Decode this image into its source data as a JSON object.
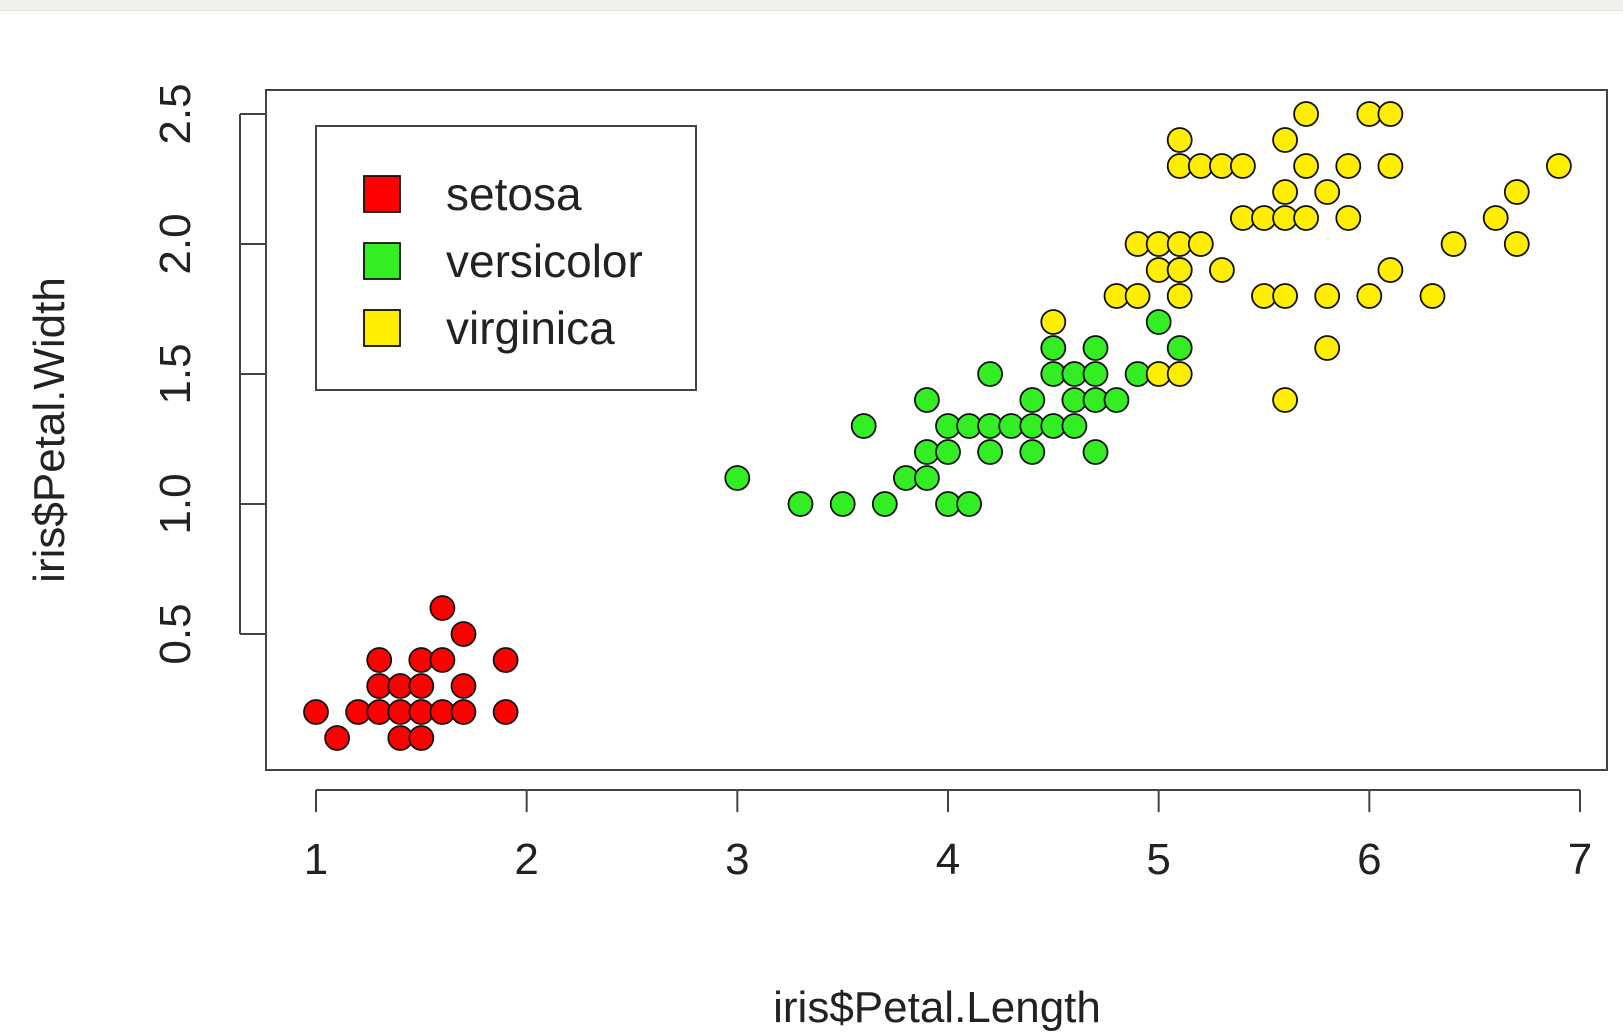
{
  "chart_data": {
    "type": "scatter",
    "title": "",
    "xlabel": "iris$Petal.Length",
    "ylabel": "iris$Petal.Width",
    "xlim": [
      1,
      7
    ],
    "ylim": [
      0,
      2.5
    ],
    "grid": false,
    "legend_position": "top-left",
    "x_ticks": [
      1,
      2,
      3,
      4,
      5,
      6,
      7
    ],
    "y_ticks": [
      "0.5",
      "1.0",
      "1.5",
      "2.0",
      "2.5"
    ],
    "series": [
      {
        "name": "setosa",
        "color": "#ff0000",
        "x": [
          1.0,
          1.1,
          1.2,
          1.3,
          1.3,
          1.3,
          1.4,
          1.4,
          1.4,
          1.5,
          1.5,
          1.5,
          1.5,
          1.6,
          1.6,
          1.6,
          1.7,
          1.7,
          1.7,
          1.9,
          1.9
        ],
        "y": [
          0.2,
          0.1,
          0.2,
          0.2,
          0.3,
          0.4,
          0.1,
          0.2,
          0.3,
          0.1,
          0.2,
          0.3,
          0.4,
          0.2,
          0.4,
          0.6,
          0.2,
          0.3,
          0.5,
          0.2,
          0.4
        ]
      },
      {
        "name": "versicolor",
        "color": "#33ee22",
        "x": [
          3.0,
          3.3,
          3.5,
          3.6,
          3.7,
          3.8,
          3.9,
          3.9,
          3.9,
          4.0,
          4.0,
          4.0,
          4.1,
          4.1,
          4.2,
          4.2,
          4.2,
          4.3,
          4.4,
          4.4,
          4.4,
          4.5,
          4.5,
          4.5,
          4.6,
          4.6,
          4.6,
          4.7,
          4.7,
          4.7,
          4.7,
          4.8,
          4.9,
          5.0,
          5.1
        ],
        "y": [
          1.1,
          1.0,
          1.0,
          1.3,
          1.0,
          1.1,
          1.1,
          1.2,
          1.4,
          1.0,
          1.2,
          1.3,
          1.0,
          1.3,
          1.2,
          1.3,
          1.5,
          1.3,
          1.2,
          1.3,
          1.4,
          1.3,
          1.5,
          1.6,
          1.3,
          1.4,
          1.5,
          1.2,
          1.4,
          1.5,
          1.6,
          1.4,
          1.5,
          1.7,
          1.6
        ]
      },
      {
        "name": "virginica",
        "color": "#ffee00",
        "x": [
          4.5,
          4.8,
          4.9,
          4.9,
          5.0,
          5.0,
          5.0,
          5.1,
          5.1,
          5.1,
          5.1,
          5.1,
          5.1,
          5.1,
          5.2,
          5.2,
          5.3,
          5.3,
          5.4,
          5.4,
          5.5,
          5.5,
          5.6,
          5.6,
          5.6,
          5.6,
          5.6,
          5.7,
          5.7,
          5.7,
          5.8,
          5.8,
          5.8,
          5.9,
          5.9,
          6.0,
          6.0,
          6.1,
          6.1,
          6.1,
          6.3,
          6.4,
          6.6,
          6.7,
          6.7,
          6.9
        ],
        "y": [
          1.7,
          1.8,
          1.8,
          2.0,
          1.5,
          1.9,
          2.0,
          1.5,
          1.8,
          1.9,
          2.0,
          2.3,
          2.4,
          1.9,
          2.0,
          2.3,
          1.9,
          2.3,
          2.1,
          2.3,
          1.8,
          2.1,
          1.4,
          1.8,
          2.1,
          2.2,
          2.4,
          2.1,
          2.3,
          2.5,
          1.6,
          1.8,
          2.2,
          2.1,
          2.3,
          1.8,
          2.5,
          1.9,
          2.3,
          2.5,
          1.8,
          2.0,
          2.1,
          2.0,
          2.2,
          2.3
        ]
      }
    ]
  }
}
